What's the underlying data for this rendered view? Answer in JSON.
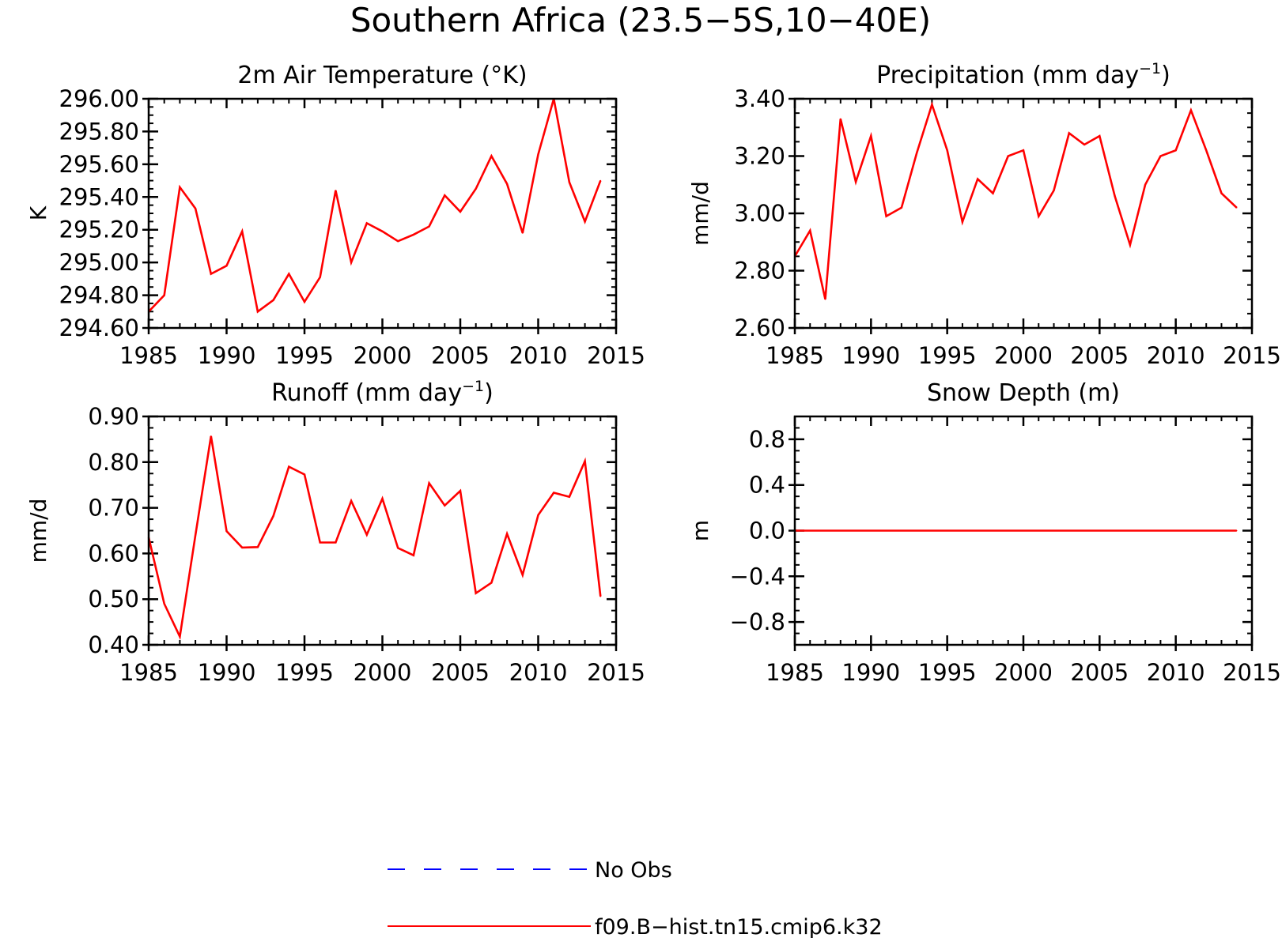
{
  "title": "Southern Africa (23.5−5S,10−40E)",
  "legend": {
    "items": [
      {
        "label": "No Obs",
        "color": "#0000ff",
        "dash": true
      },
      {
        "label": "f09.B−hist.tn15.cmip6.k32",
        "color": "#ff0000",
        "dash": false
      }
    ]
  },
  "chart_data": [
    {
      "type": "line",
      "title": "2m Air Temperature (°K)",
      "title_sup": "",
      "title_suffix": "",
      "ylabel": "K",
      "xlabel": "",
      "xlim": [
        1985,
        2015
      ],
      "ylim": [
        294.6,
        296.0
      ],
      "xticks": [
        1985,
        1990,
        1995,
        2000,
        2005,
        2010,
        2015
      ],
      "xtick_labels": [
        "1985",
        "1990",
        "1995",
        "2000",
        "2005",
        "2010",
        "2015"
      ],
      "yticks": [
        294.6,
        294.8,
        295.0,
        295.2,
        295.4,
        295.6,
        295.8,
        296.0
      ],
      "ytick_labels": [
        "294.60",
        "294.80",
        "295.00",
        "295.20",
        "295.40",
        "295.60",
        "295.80",
        "296.00"
      ],
      "series": [
        {
          "color": "#ff0000",
          "x": [
            1985,
            1986,
            1987,
            1988,
            1989,
            1990,
            1991,
            1992,
            1993,
            1994,
            1995,
            1996,
            1997,
            1998,
            1999,
            2000,
            2001,
            2002,
            2003,
            2004,
            2005,
            2006,
            2007,
            2008,
            2009,
            2010,
            2011,
            2012,
            2013,
            2014
          ],
          "y": [
            294.7,
            294.8,
            295.46,
            295.33,
            294.93,
            294.98,
            295.19,
            294.7,
            294.77,
            294.93,
            294.76,
            294.91,
            295.44,
            295.0,
            295.24,
            295.19,
            295.13,
            295.17,
            295.22,
            295.41,
            295.31,
            295.45,
            295.65,
            295.48,
            295.18,
            295.66,
            296.0,
            295.49,
            295.25,
            295.5
          ]
        }
      ]
    },
    {
      "type": "line",
      "title": "Precipitation (mm day",
      "title_sup": "−1",
      "title_suffix": ")",
      "ylabel": "mm/d",
      "xlabel": "",
      "xlim": [
        1985,
        2015
      ],
      "ylim": [
        2.6,
        3.4
      ],
      "xticks": [
        1985,
        1990,
        1995,
        2000,
        2005,
        2010,
        2015
      ],
      "xtick_labels": [
        "1985",
        "1990",
        "1995",
        "2000",
        "2005",
        "2010",
        "2015"
      ],
      "yticks": [
        2.6,
        2.8,
        3.0,
        3.2,
        3.4
      ],
      "ytick_labels": [
        "2.60",
        "2.80",
        "3.00",
        "3.20",
        "3.40"
      ],
      "series": [
        {
          "color": "#ff0000",
          "x": [
            1985,
            1986,
            1987,
            1988,
            1989,
            1990,
            1991,
            1992,
            1993,
            1994,
            1995,
            1996,
            1997,
            1998,
            1999,
            2000,
            2001,
            2002,
            2003,
            2004,
            2005,
            2006,
            2007,
            2008,
            2009,
            2010,
            2011,
            2012,
            2013,
            2014
          ],
          "y": [
            2.85,
            2.94,
            2.7,
            3.33,
            3.11,
            3.27,
            2.99,
            3.02,
            3.21,
            3.38,
            3.22,
            2.97,
            3.12,
            3.07,
            3.2,
            3.22,
            2.99,
            3.08,
            3.28,
            3.24,
            3.27,
            3.06,
            2.89,
            3.1,
            3.2,
            3.22,
            3.36,
            3.22,
            3.07,
            3.02
          ]
        }
      ]
    },
    {
      "type": "line",
      "title": "Runoff (mm day",
      "title_sup": "−1",
      "title_suffix": ")",
      "ylabel": "mm/d",
      "xlabel": "",
      "xlim": [
        1985,
        2015
      ],
      "ylim": [
        0.4,
        0.9
      ],
      "xticks": [
        1985,
        1990,
        1995,
        2000,
        2005,
        2010,
        2015
      ],
      "xtick_labels": [
        "1985",
        "1990",
        "1995",
        "2000",
        "2005",
        "2010",
        "2015"
      ],
      "yticks": [
        0.4,
        0.5,
        0.6,
        0.7,
        0.8,
        0.9
      ],
      "ytick_labels": [
        "0.40",
        "0.50",
        "0.60",
        "0.70",
        "0.80",
        "0.90"
      ],
      "series": [
        {
          "color": "#ff0000",
          "x": [
            1985,
            1986,
            1987,
            1988,
            1989,
            1990,
            1991,
            1992,
            1993,
            1994,
            1995,
            1996,
            1997,
            1998,
            1999,
            2000,
            2001,
            2002,
            2003,
            2004,
            2005,
            2006,
            2007,
            2008,
            2009,
            2010,
            2011,
            2012,
            2013,
            2014
          ],
          "y": [
            0.635,
            0.49,
            0.418,
            0.64,
            0.857,
            0.649,
            0.613,
            0.614,
            0.682,
            0.79,
            0.773,
            0.624,
            0.624,
            0.715,
            0.641,
            0.72,
            0.612,
            0.596,
            0.754,
            0.705,
            0.737,
            0.513,
            0.536,
            0.643,
            0.553,
            0.684,
            0.733,
            0.724,
            0.802,
            0.506
          ]
        }
      ]
    },
    {
      "type": "line",
      "title": "Snow Depth (m)",
      "title_sup": "",
      "title_suffix": "",
      "ylabel": "m",
      "xlabel": "",
      "xlim": [
        1985,
        2015
      ],
      "ylim": [
        -1.0,
        1.0
      ],
      "xticks": [
        1985,
        1990,
        1995,
        2000,
        2005,
        2010,
        2015
      ],
      "xtick_labels": [
        "1985",
        "1990",
        "1995",
        "2000",
        "2005",
        "2010",
        "2015"
      ],
      "yticks": [
        -0.8,
        -0.4,
        0.0,
        0.4,
        0.8
      ],
      "ytick_labels": [
        "−0.8",
        "−0.4",
        "0.0",
        "0.4",
        "0.8"
      ],
      "series": [
        {
          "color": "#ff0000",
          "x": [
            1985,
            1986,
            1987,
            1988,
            1989,
            1990,
            1991,
            1992,
            1993,
            1994,
            1995,
            1996,
            1997,
            1998,
            1999,
            2000,
            2001,
            2002,
            2003,
            2004,
            2005,
            2006,
            2007,
            2008,
            2009,
            2010,
            2011,
            2012,
            2013,
            2014
          ],
          "y": [
            0,
            0,
            0,
            0,
            0,
            0,
            0,
            0,
            0,
            0,
            0,
            0,
            0,
            0,
            0,
            0,
            0,
            0,
            0,
            0,
            0,
            0,
            0,
            0,
            0,
            0,
            0,
            0,
            0,
            0
          ]
        }
      ]
    }
  ]
}
